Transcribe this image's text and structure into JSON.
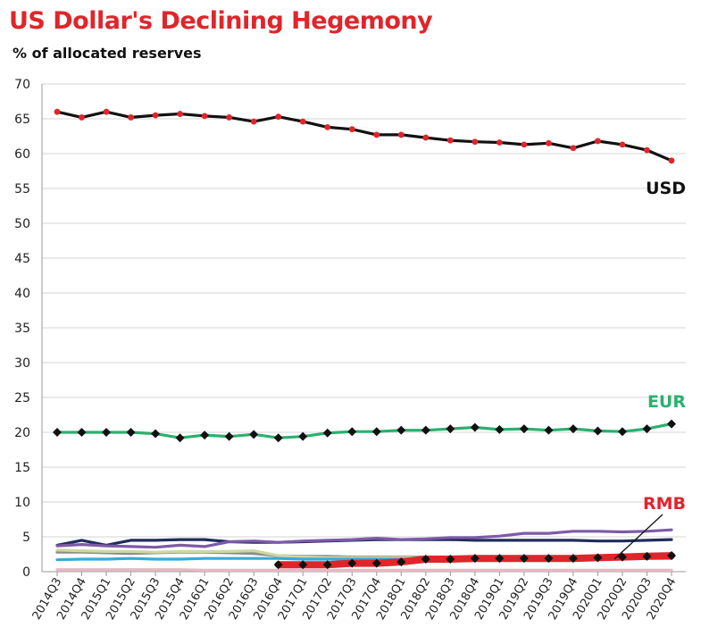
{
  "chart_data": {
    "type": "line",
    "title": "US Dollar's Declining Hegemony",
    "subtitle": "% of allocated reserves",
    "ylim": [
      0,
      70
    ],
    "yticks": [
      0,
      5,
      10,
      15,
      20,
      25,
      30,
      35,
      40,
      45,
      50,
      55,
      60,
      65,
      70
    ],
    "grid": true,
    "legend": "none",
    "categories": [
      "2014Q3",
      "2014Q4",
      "2015Q1",
      "2015Q2",
      "2015Q3",
      "2015Q4",
      "2016Q1",
      "2016Q2",
      "2016Q3",
      "2016Q4",
      "2017Q1",
      "2017Q2",
      "2017Q3",
      "2017Q4",
      "2018Q1",
      "2018Q2",
      "2018Q3",
      "2018Q4",
      "2019Q1",
      "2019Q2",
      "2019Q3",
      "2019Q4",
      "2020Q1",
      "2020Q2",
      "2020Q3",
      "2020Q4"
    ],
    "series": [
      {
        "name": "USD",
        "color": "#111111",
        "marker_color": "#e0252b",
        "marker": "circle",
        "values": [
          66.0,
          65.2,
          66.0,
          65.2,
          65.5,
          65.7,
          65.4,
          65.2,
          64.6,
          65.3,
          64.6,
          63.8,
          63.5,
          62.7,
          62.7,
          62.3,
          61.9,
          61.7,
          61.6,
          61.3,
          61.5,
          60.8,
          61.8,
          61.3,
          60.5,
          59.0
        ]
      },
      {
        "name": "EUR",
        "color": "#2ab06f",
        "marker_color": "#111111",
        "marker": "diamond",
        "values": [
          20.0,
          20.0,
          20.0,
          20.0,
          19.8,
          19.2,
          19.6,
          19.4,
          19.7,
          19.2,
          19.4,
          19.9,
          20.1,
          20.1,
          20.3,
          20.3,
          20.5,
          20.7,
          20.4,
          20.5,
          20.3,
          20.5,
          20.2,
          20.1,
          20.5,
          21.2
        ]
      },
      {
        "name": "RMB",
        "color": "#e0252b",
        "marker_color": "#111111",
        "marker": "diamond",
        "values": [
          null,
          null,
          null,
          null,
          null,
          null,
          null,
          null,
          null,
          1.0,
          1.0,
          1.0,
          1.2,
          1.2,
          1.4,
          1.8,
          1.8,
          1.9,
          1.9,
          1.9,
          1.9,
          1.9,
          2.0,
          2.1,
          2.2,
          2.3
        ]
      },
      {
        "name": "",
        "color": "#1f2d5c",
        "values": [
          3.8,
          4.5,
          3.8,
          4.5,
          4.5,
          4.6,
          4.6,
          4.3,
          4.2,
          4.2,
          4.3,
          4.4,
          4.5,
          4.6,
          4.6,
          4.6,
          4.6,
          4.5,
          4.5,
          4.5,
          4.5,
          4.5,
          4.4,
          4.4,
          4.5,
          4.6
        ]
      },
      {
        "name": "",
        "color": "#7e5aa8",
        "values": [
          3.7,
          3.9,
          3.7,
          3.6,
          3.5,
          3.8,
          3.6,
          4.3,
          4.4,
          4.2,
          4.4,
          4.5,
          4.6,
          4.8,
          4.6,
          4.7,
          4.9,
          4.9,
          5.1,
          5.5,
          5.5,
          5.8,
          5.8,
          5.7,
          5.8,
          6.0
        ]
      },
      {
        "name": "",
        "color": "#8c8c8c",
        "values": [
          2.8,
          2.8,
          2.7,
          2.6,
          2.7,
          2.8,
          2.8,
          2.7,
          2.6,
          2.3,
          2.2,
          2.2,
          2.1,
          2.1,
          2.1,
          2.1,
          2.1,
          2.1,
          2.1,
          2.1,
          2.1,
          2.1,
          2.0,
          2.0,
          2.1,
          2.1
        ]
      },
      {
        "name": "",
        "color": "#cfd7a0",
        "values": [
          3.1,
          3.0,
          2.9,
          2.9,
          2.8,
          2.9,
          2.9,
          2.9,
          3.0,
          2.3,
          2.1,
          2.0,
          2.0,
          2.0,
          2.0,
          2.0,
          2.0,
          2.0,
          2.0,
          2.0,
          2.0,
          2.0,
          1.9,
          1.9,
          2.0,
          2.0
        ]
      },
      {
        "name": "",
        "color": "#3aa9d8",
        "values": [
          1.7,
          1.8,
          1.8,
          1.9,
          1.8,
          1.8,
          1.9,
          1.9,
          1.9,
          1.9,
          1.8,
          1.8,
          1.8,
          1.8,
          1.8,
          1.8,
          1.9,
          1.9,
          1.9,
          1.9,
          1.9,
          1.9,
          1.9,
          1.8,
          1.9,
          1.9
        ]
      },
      {
        "name": "",
        "color": "#e8b8c4",
        "values": [
          0.3,
          0.3,
          0.3,
          0.3,
          0.3,
          0.3,
          0.2,
          0.2,
          0.2,
          0.2,
          0.2,
          0.2,
          0.2,
          0.2,
          0.2,
          0.2,
          0.2,
          0.2,
          0.2,
          0.2,
          0.2,
          0.2,
          0.2,
          0.2,
          0.2,
          0.2
        ]
      }
    ]
  }
}
